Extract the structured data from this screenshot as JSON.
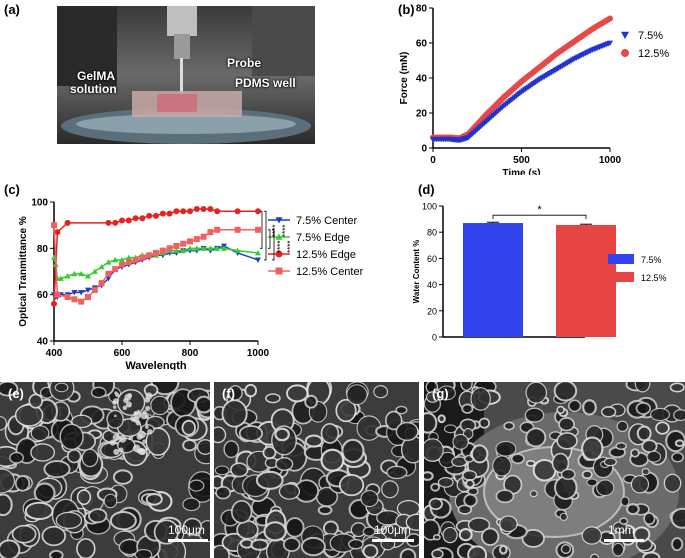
{
  "panels": {
    "a": {
      "label": "(a)",
      "annotations": [
        "Probe",
        "GelMA",
        "solution",
        "PDMS well"
      ]
    },
    "e": {
      "label": "(e)",
      "scale": "100μm"
    },
    "f": {
      "label": "(f)",
      "scale": "100μm"
    },
    "g": {
      "label": "(g)",
      "scale": "1mm"
    }
  },
  "chart_data": [
    {
      "id": "b",
      "panel_label": "(b)",
      "type": "scatter",
      "xlabel": "Time (s)",
      "ylabel": "Force (mN)",
      "xlim": [
        0,
        1000
      ],
      "ylim": [
        0,
        80
      ],
      "xticks": [
        0,
        500,
        1000
      ],
      "yticks": [
        0,
        20,
        40,
        60,
        80
      ],
      "legend_position": "right",
      "series": [
        {
          "name": "7.5%",
          "color": "#2233cc",
          "marker": "triangle-down",
          "x": [
            0,
            100,
            150,
            200,
            300,
            400,
            500,
            600,
            700,
            800,
            900,
            1000
          ],
          "y": [
            5,
            5,
            4.5,
            6,
            15,
            24,
            32,
            39,
            45,
            51,
            56,
            60
          ]
        },
        {
          "name": "12.5%",
          "color": "#e84848",
          "marker": "circle",
          "x": [
            0,
            100,
            150,
            200,
            300,
            400,
            500,
            600,
            700,
            800,
            900,
            1000
          ],
          "y": [
            6,
            6,
            5.5,
            8,
            19,
            29,
            38,
            46,
            54,
            61,
            68,
            74
          ]
        }
      ]
    },
    {
      "id": "c",
      "panel_label": "(c)",
      "type": "line",
      "xlabel": "Wavelength",
      "ylabel": "Optical Tranmittance %",
      "xlim": [
        400,
        1000
      ],
      "ylim": [
        40,
        100
      ],
      "xticks": [
        400,
        600,
        800,
        1000
      ],
      "yticks": [
        40,
        60,
        80,
        100
      ],
      "legend_position": "right",
      "significance": [
        "****",
        "****",
        "****",
        "****"
      ],
      "series": [
        {
          "name": "7.5% Center",
          "color": "#1f3fbf",
          "marker": "triangle-down",
          "x": [
            400,
            405,
            410,
            420,
            440,
            460,
            480,
            500,
            520,
            540,
            560,
            580,
            600,
            620,
            640,
            660,
            680,
            700,
            720,
            740,
            760,
            780,
            800,
            820,
            840,
            860,
            880,
            900,
            940,
            1000
          ],
          "y": [
            60,
            59,
            59,
            60,
            60,
            61,
            61,
            62,
            63,
            64,
            67,
            71,
            72,
            73,
            74,
            75,
            76,
            77,
            77,
            78,
            78,
            79,
            79,
            79,
            80,
            79,
            80,
            81,
            78,
            75
          ]
        },
        {
          "name": "7.5% Edge",
          "color": "#33cc33",
          "marker": "triangle-up",
          "x": [
            400,
            405,
            410,
            420,
            440,
            460,
            480,
            500,
            520,
            540,
            560,
            580,
            600,
            620,
            640,
            660,
            680,
            700,
            720,
            740,
            760,
            780,
            800,
            820,
            840,
            860,
            880,
            900,
            940,
            1000
          ],
          "y": [
            76,
            73,
            67,
            67,
            68,
            69,
            69,
            68,
            70,
            72,
            74,
            75,
            75,
            76,
            76,
            77,
            77,
            77,
            78,
            79,
            79,
            79,
            80,
            80,
            80,
            80,
            80,
            80,
            79,
            78
          ]
        },
        {
          "name": "12.5% Edge",
          "color": "#e52222",
          "marker": "circle",
          "x": [
            400,
            410,
            440,
            560,
            580,
            600,
            620,
            640,
            660,
            680,
            700,
            720,
            740,
            760,
            780,
            800,
            820,
            840,
            860,
            880,
            940,
            1000
          ],
          "y": [
            56,
            87,
            91,
            91,
            91,
            92,
            92,
            93,
            93,
            94,
            94,
            95,
            95,
            96,
            96,
            96,
            97,
            97,
            97,
            96,
            96,
            96
          ]
        },
        {
          "name": "12.5% Center",
          "color": "#f06060",
          "marker": "square",
          "x": [
            400,
            410,
            440,
            460,
            480,
            500,
            520,
            540,
            560,
            580,
            600,
            620,
            640,
            660,
            680,
            700,
            720,
            740,
            760,
            780,
            800,
            820,
            840,
            860,
            880,
            940,
            1000
          ],
          "y": [
            90,
            60,
            59,
            58,
            57,
            59,
            62,
            65,
            69,
            71,
            73,
            74,
            75,
            76,
            77,
            78,
            79,
            80,
            81,
            82,
            83,
            84,
            85,
            87,
            88,
            88,
            88
          ]
        }
      ]
    },
    {
      "id": "d",
      "panel_label": "(d)",
      "type": "bar",
      "ylabel": "Water Content %",
      "ylim": [
        0,
        100
      ],
      "yticks": [
        0,
        20,
        40,
        60,
        80,
        100
      ],
      "legend_position": "right",
      "significance": "*",
      "categories": [
        "7.5%",
        "12.5%"
      ],
      "values": [
        87,
        85.5
      ],
      "errors": [
        0.6,
        0.6
      ],
      "colors": [
        "#3344ee",
        "#e84444"
      ]
    }
  ]
}
